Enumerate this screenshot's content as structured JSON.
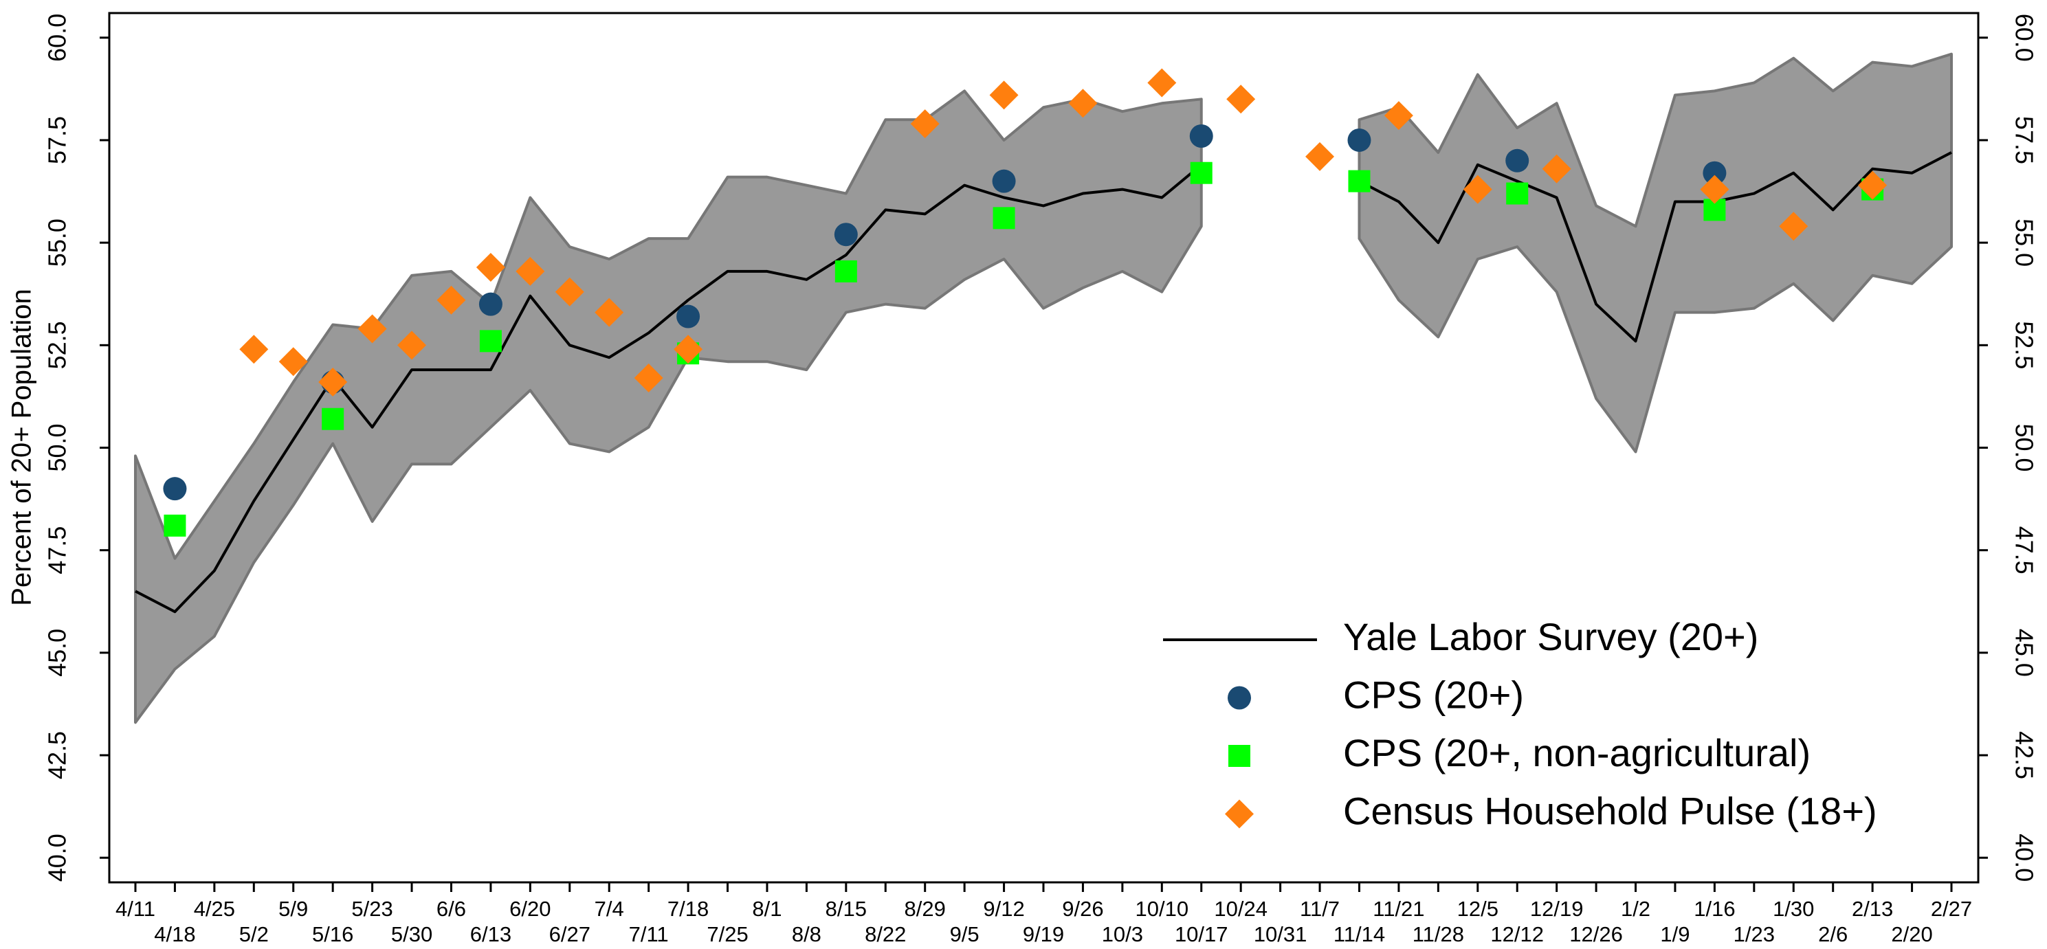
{
  "chart_data": {
    "type": "line",
    "ylabel": "Percent of 20+ Population",
    "categories": [
      "4/11",
      "4/18",
      "4/25",
      "5/2",
      "5/9",
      "5/16",
      "5/23",
      "5/30",
      "6/6",
      "6/13",
      "6/20",
      "6/27",
      "7/4",
      "7/11",
      "7/18",
      "7/25",
      "8/1",
      "8/8",
      "8/15",
      "8/22",
      "8/29",
      "9/5",
      "9/12",
      "9/19",
      "9/26",
      "10/3",
      "10/10",
      "10/17",
      "10/24",
      "10/31",
      "11/7",
      "11/14",
      "11/21",
      "11/28",
      "12/5",
      "12/12",
      "12/19",
      "12/26",
      "1/2",
      "1/9",
      "1/16",
      "1/23",
      "1/30",
      "2/6",
      "2/13",
      "2/20",
      "2/27"
    ],
    "ylim": [
      39.4,
      60.6
    ],
    "yticks": [
      {
        "value": 40,
        "label": "40.0"
      },
      {
        "value": 42.5,
        "label": "42.5"
      },
      {
        "value": 45,
        "label": "45.0"
      },
      {
        "value": 47.5,
        "label": "47.5"
      },
      {
        "value": 50,
        "label": "50.0"
      },
      {
        "value": 52.5,
        "label": "52.5"
      },
      {
        "value": 55,
        "label": "55.0"
      },
      {
        "value": 57.5,
        "label": "57.5"
      },
      {
        "value": 60,
        "label": "60.0"
      }
    ],
    "right_axis": true,
    "legend": "lower right",
    "band": {
      "color": "#999999",
      "edge": "#777777",
      "upper": [
        49.8,
        47.3,
        48.7,
        50.1,
        51.6,
        53.0,
        52.9,
        54.2,
        54.3,
        53.5,
        56.1,
        54.9,
        54.6,
        55.1,
        55.1,
        56.6,
        56.6,
        56.4,
        56.2,
        58.0,
        58.0,
        58.7,
        57.5,
        58.3,
        58.5,
        58.2,
        58.4,
        58.5,
        null,
        null,
        null,
        58.0,
        58.3,
        57.2,
        59.1,
        57.8,
        58.4,
        55.9,
        55.4,
        58.6,
        58.7,
        58.9,
        59.5,
        58.7,
        59.4,
        59.3,
        59.6
      ],
      "lower": [
        43.3,
        44.6,
        45.4,
        47.2,
        48.6,
        50.1,
        48.2,
        49.6,
        49.6,
        50.5,
        51.4,
        50.1,
        49.9,
        50.5,
        52.2,
        52.1,
        52.1,
        51.9,
        53.3,
        53.5,
        53.4,
        54.1,
        54.6,
        53.4,
        53.9,
        54.3,
        53.8,
        55.4,
        null,
        null,
        null,
        55.1,
        53.6,
        52.7,
        54.6,
        54.9,
        53.8,
        51.2,
        49.9,
        53.3,
        53.3,
        53.4,
        54.0,
        53.1,
        54.2,
        54.0,
        54.9
      ]
    },
    "series": [
      {
        "name": "Yale Labor Survey (20+)",
        "color": "#000000",
        "marker": "line",
        "values": [
          46.5,
          46.0,
          47.0,
          48.7,
          50.2,
          51.7,
          50.5,
          51.9,
          51.9,
          51.9,
          53.7,
          52.5,
          52.2,
          52.8,
          53.6,
          54.3,
          54.3,
          54.1,
          54.7,
          55.8,
          55.7,
          56.4,
          56.1,
          55.9,
          56.2,
          56.3,
          56.1,
          56.9,
          null,
          null,
          null,
          56.5,
          56.0,
          55.0,
          56.9,
          56.5,
          56.1,
          53.5,
          52.6,
          56.0,
          56.0,
          56.2,
          56.7,
          55.8,
          56.8,
          56.7,
          57.2
        ]
      },
      {
        "name": "CPS (20+)",
        "color": "#1a4a72",
        "marker": "circle",
        "values": [
          null,
          49.0,
          null,
          null,
          null,
          51.6,
          null,
          null,
          null,
          53.5,
          null,
          null,
          null,
          null,
          53.2,
          null,
          null,
          null,
          55.2,
          null,
          null,
          null,
          56.5,
          null,
          null,
          null,
          null,
          57.6,
          null,
          null,
          null,
          57.5,
          null,
          null,
          null,
          57.0,
          null,
          null,
          null,
          null,
          56.7,
          null,
          null,
          null,
          null,
          null,
          null
        ]
      },
      {
        "name": "CPS (20+, non-agricultural)",
        "color": "#00ff00",
        "marker": "square",
        "values": [
          null,
          48.1,
          null,
          null,
          null,
          50.7,
          null,
          null,
          null,
          52.6,
          null,
          null,
          null,
          null,
          52.3,
          null,
          null,
          null,
          54.3,
          null,
          null,
          null,
          55.6,
          null,
          null,
          null,
          null,
          56.7,
          null,
          null,
          null,
          56.5,
          null,
          null,
          null,
          56.2,
          null,
          null,
          null,
          null,
          55.8,
          null,
          null,
          null,
          56.3,
          null,
          null
        ]
      },
      {
        "name": "Census Household Pulse (18+)",
        "color": "#ff7f0e",
        "marker": "diamond",
        "values": [
          null,
          null,
          null,
          52.4,
          52.1,
          51.6,
          52.9,
          52.5,
          53.6,
          54.4,
          54.3,
          53.8,
          53.3,
          51.7,
          52.4,
          null,
          null,
          null,
          null,
          null,
          57.9,
          null,
          58.6,
          null,
          58.4,
          null,
          58.9,
          null,
          58.5,
          null,
          57.1,
          null,
          58.1,
          null,
          56.3,
          null,
          56.8,
          null,
          null,
          null,
          56.3,
          null,
          55.4,
          null,
          56.4,
          null,
          null
        ]
      }
    ]
  }
}
